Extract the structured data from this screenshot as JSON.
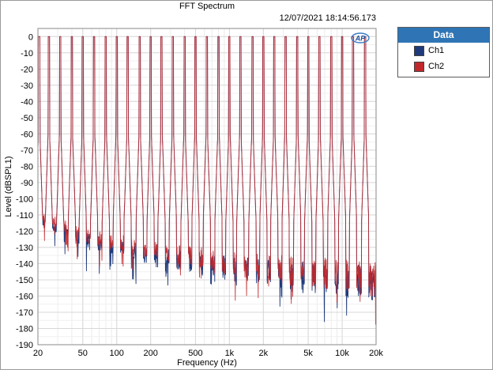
{
  "window": {
    "title": "FFT Spectrum",
    "timestamp": "12/07/2021 18:14:56.173"
  },
  "legend": {
    "title": "Data",
    "items": [
      {
        "label": "Ch1",
        "color": "#1f3a7a"
      },
      {
        "label": "Ch2",
        "color": "#c0282c"
      }
    ]
  },
  "logo": {
    "icon": "ap-logo-icon"
  },
  "chart_data": {
    "type": "line",
    "title": "FFT Spectrum",
    "xlabel": "Frequency (Hz)",
    "ylabel": "Level (dBSPL1)",
    "x_scale": "log",
    "xlim": [
      20,
      20000
    ],
    "ylim": [
      -190,
      5
    ],
    "grid": true,
    "legend_position": "right",
    "x_ticks": [
      {
        "value": 20,
        "label": "20"
      },
      {
        "value": 50,
        "label": "50"
      },
      {
        "value": 100,
        "label": "100"
      },
      {
        "value": 200,
        "label": "200"
      },
      {
        "value": 500,
        "label": "500"
      },
      {
        "value": 1000,
        "label": "1k"
      },
      {
        "value": 2000,
        "label": "2k"
      },
      {
        "value": 5000,
        "label": "5k"
      },
      {
        "value": 10000,
        "label": "10k"
      },
      {
        "value": 20000,
        "label": "20k"
      }
    ],
    "y_ticks": [
      0,
      -10,
      -20,
      -30,
      -40,
      -50,
      -60,
      -70,
      -80,
      -90,
      -100,
      -110,
      -120,
      -130,
      -140,
      -150,
      -160,
      -170,
      -180,
      -190
    ],
    "tone_frequencies": [
      20.5,
      25,
      31.5,
      40,
      50,
      63,
      80,
      100,
      125,
      160,
      200,
      250,
      315,
      400,
      500,
      630,
      800,
      1000,
      1250,
      1600,
      2000,
      2500,
      3150,
      4000,
      5000,
      6300,
      8000,
      10000,
      12500,
      16000
    ],
    "tone_level": 0,
    "noise_floor": [
      {
        "x": 20,
        "y": -110
      },
      {
        "x": 30,
        "y": -115
      },
      {
        "x": 50,
        "y": -122
      },
      {
        "x": 100,
        "y": -127
      },
      {
        "x": 200,
        "y": -132
      },
      {
        "x": 500,
        "y": -136
      },
      {
        "x": 1000,
        "y": -140
      },
      {
        "x": 2000,
        "y": -142
      },
      {
        "x": 5000,
        "y": -145
      },
      {
        "x": 10000,
        "y": -147
      },
      {
        "x": 20000,
        "y": -150
      }
    ],
    "series": [
      {
        "name": "Ch1",
        "color": "#1f3a7a"
      },
      {
        "name": "Ch2",
        "color": "#c0282c"
      }
    ]
  }
}
